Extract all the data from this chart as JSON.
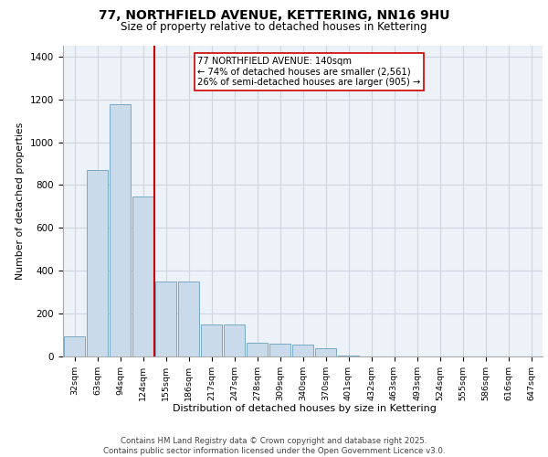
{
  "title_line1": "77, NORTHFIELD AVENUE, KETTERING, NN16 9HU",
  "title_line2": "Size of property relative to detached houses in Kettering",
  "xlabel": "Distribution of detached houses by size in Kettering",
  "ylabel": "Number of detached properties",
  "categories": [
    "32sqm",
    "63sqm",
    "94sqm",
    "124sqm",
    "155sqm",
    "186sqm",
    "217sqm",
    "247sqm",
    "278sqm",
    "309sqm",
    "340sqm",
    "370sqm",
    "401sqm",
    "432sqm",
    "463sqm",
    "493sqm",
    "524sqm",
    "555sqm",
    "586sqm",
    "616sqm",
    "647sqm"
  ],
  "values": [
    95,
    870,
    1175,
    745,
    350,
    350,
    150,
    150,
    65,
    60,
    55,
    40,
    5,
    0,
    0,
    0,
    0,
    0,
    0,
    0,
    0
  ],
  "bar_color": "#c9daea",
  "bar_edge_color": "#7aaac8",
  "grid_color": "#ccd5e0",
  "background_color": "#edf2f8",
  "vline_x_index": 3.5,
  "vline_color": "#cc0000",
  "annotation_text": "77 NORTHFIELD AVENUE: 140sqm\n← 74% of detached houses are smaller (2,561)\n26% of semi-detached houses are larger (905) →",
  "annotation_box_color": "#ffffff",
  "annotation_box_edge": "#cc0000",
  "ylim": [
    0,
    1450
  ],
  "yticks": [
    0,
    200,
    400,
    600,
    800,
    1000,
    1200,
    1400
  ],
  "footer_line1": "Contains HM Land Registry data © Crown copyright and database right 2025.",
  "footer_line2": "Contains public sector information licensed under the Open Government Licence v3.0."
}
